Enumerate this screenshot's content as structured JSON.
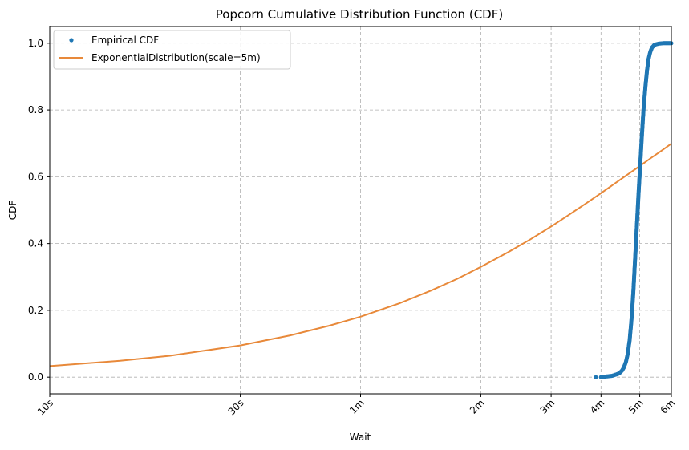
{
  "chart_data": {
    "type": "line",
    "title": "Popcorn Cumulative Distribution Function (CDF)",
    "xlabel": "Wait",
    "ylabel": "CDF",
    "x_unit": "seconds",
    "xlim": [
      10,
      360
    ],
    "ylim": [
      -0.05,
      1.05
    ],
    "x_scale": "log",
    "grid": true,
    "legend_position": "top-left",
    "x_ticks": [
      {
        "value": 10,
        "label": "10s"
      },
      {
        "value": 30,
        "label": "30s"
      },
      {
        "value": 60,
        "label": "1m"
      },
      {
        "value": 120,
        "label": "2m"
      },
      {
        "value": 180,
        "label": "3m"
      },
      {
        "value": 240,
        "label": "4m"
      },
      {
        "value": 300,
        "label": "5m"
      },
      {
        "value": 360,
        "label": "6m"
      }
    ],
    "y_ticks": [
      {
        "value": 0.0,
        "label": "0.0"
      },
      {
        "value": 0.2,
        "label": "0.2"
      },
      {
        "value": 0.4,
        "label": "0.4"
      },
      {
        "value": 0.6,
        "label": "0.6"
      },
      {
        "value": 0.8,
        "label": "0.8"
      },
      {
        "value": 1.0,
        "label": "1.0"
      }
    ],
    "series": [
      {
        "name": "Empirical CDF",
        "style": "points",
        "color": "#1f77b4",
        "points": [
          [
            233,
            0.0
          ],
          [
            240,
            0.0
          ],
          [
            244,
            0.001
          ],
          [
            248,
            0.002
          ],
          [
            252,
            0.003
          ],
          [
            256,
            0.004
          ],
          [
            259,
            0.006
          ],
          [
            262,
            0.008
          ],
          [
            265,
            0.01
          ],
          [
            268,
            0.014
          ],
          [
            271,
            0.02
          ],
          [
            274,
            0.03
          ],
          [
            277,
            0.045
          ],
          [
            280,
            0.07
          ],
          [
            283,
            0.11
          ],
          [
            286,
            0.17
          ],
          [
            289,
            0.25
          ],
          [
            292,
            0.35
          ],
          [
            295,
            0.45
          ],
          [
            298,
            0.55
          ],
          [
            301,
            0.64
          ],
          [
            304,
            0.73
          ],
          [
            307,
            0.81
          ],
          [
            310,
            0.87
          ],
          [
            313,
            0.92
          ],
          [
            316,
            0.955
          ],
          [
            319,
            0.975
          ],
          [
            322,
            0.987
          ],
          [
            326,
            0.994
          ],
          [
            330,
            0.997
          ],
          [
            336,
            0.999
          ],
          [
            344,
            1.0
          ],
          [
            352,
            1.0
          ],
          [
            360,
            1.0
          ]
        ]
      },
      {
        "name": "ExponentialDistribution(scale=5m)",
        "style": "line",
        "color": "#e8893a",
        "points": [
          [
            10,
            0.033
          ],
          [
            15,
            0.049
          ],
          [
            20,
            0.064
          ],
          [
            30,
            0.095
          ],
          [
            40,
            0.125
          ],
          [
            50,
            0.154
          ],
          [
            60,
            0.181
          ],
          [
            75,
            0.221
          ],
          [
            90,
            0.259
          ],
          [
            105,
            0.295
          ],
          [
            120,
            0.33
          ],
          [
            140,
            0.373
          ],
          [
            160,
            0.413
          ],
          [
            180,
            0.451
          ],
          [
            200,
            0.487
          ],
          [
            220,
            0.52
          ],
          [
            240,
            0.551
          ],
          [
            260,
            0.58
          ],
          [
            280,
            0.607
          ],
          [
            300,
            0.632
          ],
          [
            320,
            0.656
          ],
          [
            340,
            0.678
          ],
          [
            360,
            0.699
          ]
        ]
      }
    ]
  }
}
